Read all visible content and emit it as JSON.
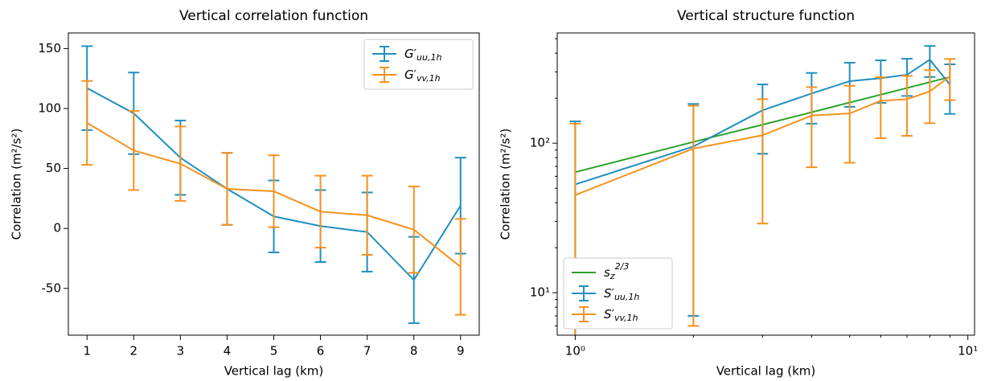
{
  "chart_data": [
    {
      "type": "errorbar-line",
      "title": "Vertical correlation function",
      "xlabel": "Vertical lag (km)",
      "ylabel": "Correlation (m²/s²)",
      "x": [
        1,
        2,
        3,
        4,
        5,
        6,
        7,
        8,
        9
      ],
      "xlim": [
        0.6,
        9.4
      ],
      "xticks": [
        1,
        2,
        3,
        4,
        5,
        6,
        7,
        8,
        9
      ],
      "ylim": [
        -89,
        163
      ],
      "yticks": [
        -50,
        0,
        50,
        100,
        150
      ],
      "legend": "upper right",
      "series": [
        {
          "name": "G′uu,1h",
          "color": "#1f8fbf",
          "values": [
            117,
            96,
            59,
            33,
            10,
            2,
            -3,
            -43,
            19
          ],
          "errors": [
            35,
            34,
            31,
            30,
            30,
            30,
            33,
            36,
            40
          ]
        },
        {
          "name": "G′vv,1h",
          "color": "#f5921e",
          "values": [
            88,
            65,
            54,
            33,
            31,
            14,
            11,
            -1,
            -32
          ],
          "errors": [
            35,
            33,
            31,
            30,
            30,
            30,
            33,
            36,
            40
          ]
        }
      ]
    },
    {
      "type": "errorbar-line",
      "title": "Vertical structure function",
      "xlabel": "Vertical lag (km)",
      "ylabel": "Correlation (m²/s²)",
      "x": [
        1,
        2,
        3,
        4,
        5,
        6,
        7,
        8,
        9
      ],
      "xlog": true,
      "ylog": true,
      "xlim": [
        0.9,
        10.4
      ],
      "xticks": [
        {
          "value": 1,
          "label": "10⁰"
        },
        {
          "value": 10,
          "label": "10¹"
        }
      ],
      "xminor": [
        2,
        3,
        4,
        5,
        6,
        7,
        8,
        9
      ],
      "ylim": [
        5.2,
        546
      ],
      "yticks": [
        {
          "value": 10,
          "label": "10¹"
        },
        {
          "value": 100,
          "label": "10²"
        }
      ],
      "yminor": [
        6,
        7,
        8,
        9,
        20,
        30,
        40,
        50,
        60,
        70,
        80,
        90,
        200,
        300,
        400,
        500
      ],
      "legend": "lower left",
      "series": [
        {
          "name": "sz2/3",
          "color": "#2ca02c",
          "values": [
            64,
            102,
            133,
            161,
            187,
            211,
            234,
            256,
            277
          ]
        },
        {
          "name": "S′uu,1h",
          "color": "#1f8fbf",
          "values": [
            53,
            95,
            166,
            215,
            260,
            272,
            287,
            362,
            247
          ],
          "errors": [
            87,
            88,
            81,
            80,
            85,
            86,
            80,
            85,
            90
          ]
        },
        {
          "name": "S′vv,1h",
          "color": "#f5921e",
          "values": [
            45,
            92,
            113,
            153,
            158,
            192,
            197,
            222,
            280
          ],
          "errors": [
            90,
            86,
            84,
            84,
            84,
            84,
            85,
            86,
            86
          ]
        }
      ]
    }
  ]
}
